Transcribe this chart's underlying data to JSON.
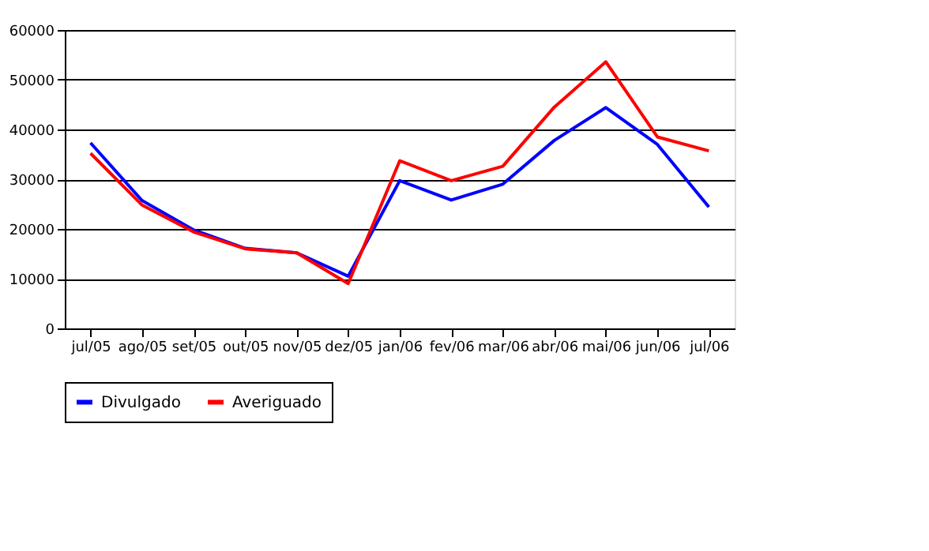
{
  "chart_data": {
    "type": "line",
    "categories": [
      "jul/05",
      "ago/05",
      "set/05",
      "out/05",
      "nov/05",
      "dez/05",
      "jan/06",
      "fev/06",
      "mar/06",
      "abr/06",
      "mai/06",
      "jun/06",
      "jul/06"
    ],
    "series": [
      {
        "name": "Divulgado",
        "color": "#0000ff",
        "values": [
          37300,
          25700,
          19800,
          16100,
          15200,
          10500,
          29700,
          25800,
          29000,
          37800,
          44400,
          37000,
          24400
        ]
      },
      {
        "name": "Averiguado",
        "color": "#ff0000",
        "values": [
          35200,
          24800,
          19400,
          16000,
          15200,
          9000,
          33700,
          29700,
          32600,
          44500,
          53600,
          38500,
          35700
        ]
      }
    ],
    "ylim": [
      0,
      60000
    ],
    "yticks": [
      0,
      10000,
      20000,
      30000,
      40000,
      50000,
      60000
    ],
    "grid": "y",
    "legend": "bottom",
    "marker": "none",
    "line_style": "solid"
  }
}
